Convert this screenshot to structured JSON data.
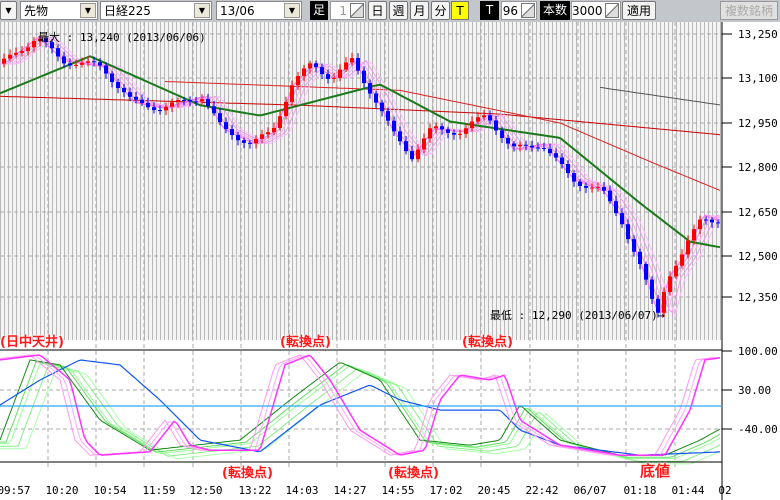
{
  "toolbar": {
    "type_select": "先物",
    "symbol_select": "日経225",
    "contract_select": "13/06",
    "ashi_label": "足",
    "period_value": "1",
    "day": "日",
    "week": "週",
    "month": "月",
    "minute": "分",
    "tick": "T",
    "t_label": "T",
    "t_value": "96",
    "count_label": "本数",
    "count_value": "3000",
    "apply": "適用",
    "multi": "複数銘柄"
  },
  "annotations": {
    "max": "最大 : 13,240 (2013/06/06)",
    "min": "最低 : 12,290 (2013/06/07)→",
    "a1": "(日中天井)",
    "a2": "(転換点)",
    "a3": "(転換点)",
    "a4": "(転換点)",
    "a5": "(転換点)",
    "a6": "底値"
  },
  "chart_data": {
    "type": "line",
    "price_axis": {
      "ticks": [
        "13,250",
        "13,100",
        "12,950",
        "12,800",
        "12,650",
        "12,500",
        "12,350"
      ],
      "range": [
        12250,
        13290
      ]
    },
    "osc_axis": {
      "ticks": [
        "100.00",
        "30.00",
        "-40.00"
      ],
      "range": [
        -100,
        110
      ]
    },
    "x_labels": [
      "09:57",
      "10:20",
      "10:54",
      "11:59",
      "12:50",
      "13:22",
      "14:03",
      "14:27",
      "14:55",
      "17:02",
      "20:45",
      "22:42",
      "06/07",
      "01:18",
      "01:44",
      "02"
    ],
    "price_anchors": [
      [
        0,
        13150
      ],
      [
        35,
        13240
      ],
      [
        60,
        13160
      ],
      [
        100,
        13140
      ],
      [
        130,
        13020
      ],
      [
        160,
        13000
      ],
      [
        200,
        13040
      ],
      [
        220,
        12930
      ],
      [
        250,
        12880
      ],
      [
        270,
        12920
      ],
      [
        290,
        13080
      ],
      [
        310,
        13150
      ],
      [
        330,
        13100
      ],
      [
        350,
        13160
      ],
      [
        370,
        13050
      ],
      [
        390,
        12920
      ],
      [
        410,
        12840
      ],
      [
        430,
        12930
      ],
      [
        460,
        12920
      ],
      [
        485,
        12980
      ],
      [
        510,
        12860
      ],
      [
        540,
        12880
      ],
      [
        570,
        12760
      ],
      [
        600,
        12720
      ],
      [
        620,
        12620
      ],
      [
        640,
        12450
      ],
      [
        655,
        12300
      ],
      [
        665,
        12430
      ],
      [
        680,
        12500
      ],
      [
        700,
        12640
      ],
      [
        722,
        12610
      ]
    ],
    "ma_green": [
      [
        0,
        13050
      ],
      [
        90,
        13175
      ],
      [
        200,
        13010
      ],
      [
        260,
        12975
      ],
      [
        380,
        13080
      ],
      [
        450,
        12955
      ],
      [
        560,
        12900
      ],
      [
        640,
        12680
      ],
      [
        690,
        12550
      ],
      [
        722,
        12530
      ]
    ],
    "ma_red1": [
      [
        0,
        13040
      ],
      [
        300,
        13010
      ],
      [
        500,
        12980
      ],
      [
        722,
        12910
      ]
    ],
    "ma_red2": [
      [
        165,
        13090
      ],
      [
        400,
        13060
      ],
      [
        560,
        12950
      ],
      [
        650,
        12820
      ],
      [
        722,
        12720
      ]
    ],
    "ma_gray": [
      [
        600,
        13070
      ],
      [
        722,
        13010
      ]
    ],
    "osc_magenta": [
      [
        0,
        84
      ],
      [
        40,
        93
      ],
      [
        70,
        48
      ],
      [
        85,
        -60
      ],
      [
        100,
        -87
      ],
      [
        150,
        -81
      ],
      [
        175,
        -24
      ],
      [
        190,
        -69
      ],
      [
        210,
        -78
      ],
      [
        260,
        -78
      ],
      [
        285,
        75
      ],
      [
        310,
        93
      ],
      [
        330,
        48
      ],
      [
        360,
        -42
      ],
      [
        400,
        -87
      ],
      [
        425,
        -78
      ],
      [
        440,
        12
      ],
      [
        460,
        57
      ],
      [
        490,
        48
      ],
      [
        505,
        57
      ],
      [
        520,
        -24
      ],
      [
        560,
        -69
      ],
      [
        620,
        -87
      ],
      [
        665,
        -87
      ],
      [
        690,
        -6
      ],
      [
        705,
        84
      ],
      [
        722,
        88
      ]
    ],
    "osc_blue": [
      [
        0,
        3
      ],
      [
        40,
        48
      ],
      [
        80,
        84
      ],
      [
        120,
        75
      ],
      [
        160,
        12
      ],
      [
        200,
        -60
      ],
      [
        260,
        -81
      ],
      [
        320,
        3
      ],
      [
        370,
        39
      ],
      [
        400,
        12
      ],
      [
        440,
        -6
      ],
      [
        500,
        -6
      ],
      [
        520,
        -42
      ],
      [
        560,
        -69
      ],
      [
        640,
        -87
      ],
      [
        722,
        -81
      ]
    ],
    "osc_green": [
      [
        0,
        -60
      ],
      [
        30,
        84
      ],
      [
        60,
        75
      ],
      [
        100,
        -24
      ],
      [
        150,
        -78
      ],
      [
        240,
        -60
      ],
      [
        290,
        12
      ],
      [
        340,
        80
      ],
      [
        380,
        48
      ],
      [
        420,
        -60
      ],
      [
        470,
        -69
      ],
      [
        500,
        -60
      ],
      [
        520,
        3
      ],
      [
        560,
        -60
      ],
      [
        620,
        -87
      ],
      [
        665,
        -87
      ],
      [
        700,
        -60
      ],
      [
        722,
        -38
      ]
    ]
  }
}
